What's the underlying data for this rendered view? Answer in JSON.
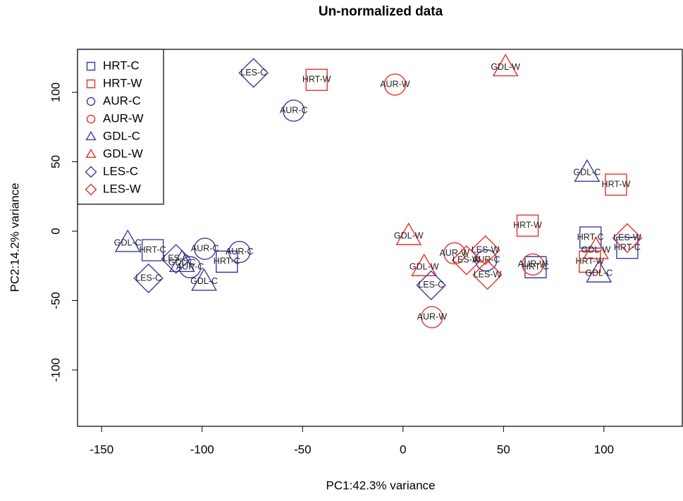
{
  "chart_data": {
    "type": "scatter",
    "title": "Un-normalized data",
    "x_label": "PC1:42.3% variance",
    "y_label": "PC2:14.2% variance",
    "xlim": [
      -162,
      139
    ],
    "ylim": [
      -140.6,
      131
    ],
    "xticks": [
      -150,
      -100,
      -50,
      0,
      50,
      100
    ],
    "yticks": [
      -100,
      -50,
      0,
      50,
      100
    ],
    "legend": "top-left",
    "series": [
      {
        "name": "HRT-C",
        "color": "#3b3ba8",
        "shape": "square",
        "x": [
          -124.6,
          -87.7,
          93.3,
          111.6,
          66
        ],
        "y": [
          -13.7,
          -22,
          -4.6,
          -12,
          -26
        ]
      },
      {
        "name": "HRT-W",
        "color": "#e8302a",
        "shape": "square",
        "x": [
          -43,
          106,
          62,
          93
        ],
        "y": [
          109,
          33.5,
          4,
          -22
        ]
      },
      {
        "name": "AUR-C",
        "color": "#3b3ba8",
        "shape": "circle",
        "x": [
          -54.4,
          -98.6,
          -81.4,
          -106,
          41.4
        ],
        "y": [
          86.8,
          -12.7,
          -15,
          -26,
          -21
        ]
      },
      {
        "name": "AUR-W",
        "color": "#e8302a",
        "shape": "circle",
        "x": [
          -4,
          25.6,
          14.4,
          64.6
        ],
        "y": [
          105.6,
          -16,
          -62,
          -24
        ]
      },
      {
        "name": "GDL-C",
        "color": "#3b3ba8",
        "shape": "triangle",
        "x": [
          -137,
          -110,
          -99,
          91.6,
          97.5
        ],
        "y": [
          -8.6,
          -23,
          -36.5,
          42,
          -30.5
        ]
      },
      {
        "name": "GDL-W",
        "color": "#e8302a",
        "shape": "triangle",
        "x": [
          51,
          2.8,
          10.5,
          96
        ],
        "y": [
          118,
          -3.6,
          -26,
          -13.7
        ]
      },
      {
        "name": "LES-C",
        "color": "#3b3ba8",
        "shape": "diamond",
        "x": [
          -74.4,
          -126.7,
          -113,
          14
        ],
        "y": [
          114,
          -34,
          -20,
          -39
        ]
      },
      {
        "name": "LES-W",
        "color": "#e8302a",
        "shape": "diamond",
        "x": [
          41,
          31.6,
          42,
          111.6
        ],
        "y": [
          -13.7,
          -21,
          -31.5,
          -5
        ]
      }
    ]
  }
}
